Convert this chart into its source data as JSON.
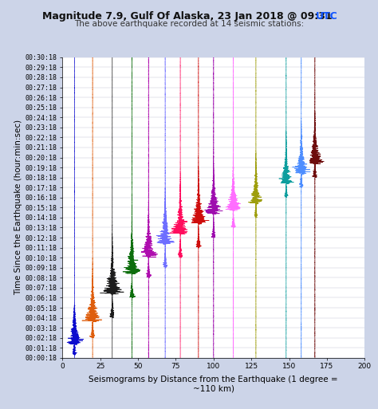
{
  "title_main": "Magnitude 7.9, Gulf Of Alaska, 23 Jan 2018 @ 09:31 ",
  "title_utc": "UTC",
  "subtitle": "The above earthquake recorded at 14 seismic stations:",
  "xlabel": "Seismograms by Distance from the Earthquake (1 degree =\n~110 km)",
  "ylabel": "Time Since the Earthquake (hour:min:sec)",
  "xlim": [
    0,
    200
  ],
  "ylim": [
    0,
    1800
  ],
  "xticks": [
    0,
    25,
    50,
    75,
    100,
    125,
    150,
    175,
    200
  ],
  "background_color": "#ccd4e8",
  "plot_bg_color": "#ffffff",
  "grid_color": "#bbbbcc",
  "stations": [
    {
      "x": 8,
      "color": "#0000cc",
      "amp": 2.5,
      "onset": 18,
      "duration": 300,
      "scale": 6
    },
    {
      "x": 20,
      "color": "#dd5500",
      "amp": 2.0,
      "onset": 120,
      "duration": 480,
      "scale": 7
    },
    {
      "x": 33,
      "color": "#111111",
      "amp": 4.0,
      "onset": 240,
      "duration": 700,
      "scale": 8
    },
    {
      "x": 46,
      "color": "#006600",
      "amp": 2.0,
      "onset": 360,
      "duration": 700,
      "scale": 6
    },
    {
      "x": 57,
      "color": "#aa00aa",
      "amp": 1.5,
      "onset": 480,
      "duration": 600,
      "scale": 6
    },
    {
      "x": 68,
      "color": "#6666ff",
      "amp": 1.8,
      "onset": 540,
      "duration": 700,
      "scale": 6
    },
    {
      "x": 78,
      "color": "#ff0055",
      "amp": 2.5,
      "onset": 600,
      "duration": 700,
      "scale": 7
    },
    {
      "x": 90,
      "color": "#cc0000",
      "amp": 2.0,
      "onset": 660,
      "duration": 700,
      "scale": 7
    },
    {
      "x": 100,
      "color": "#9900aa",
      "amp": 1.5,
      "onset": 720,
      "duration": 700,
      "scale": 6
    },
    {
      "x": 113,
      "color": "#ff66ff",
      "amp": 1.2,
      "onset": 780,
      "duration": 500,
      "scale": 5
    },
    {
      "x": 128,
      "color": "#999900",
      "amp": 1.5,
      "onset": 840,
      "duration": 400,
      "scale": 5
    },
    {
      "x": 148,
      "color": "#009999",
      "amp": 1.5,
      "onset": 960,
      "duration": 400,
      "scale": 5
    },
    {
      "x": 158,
      "color": "#4488ff",
      "amp": 1.5,
      "onset": 1020,
      "duration": 400,
      "scale": 6
    },
    {
      "x": 167,
      "color": "#660000",
      "amp": 1.5,
      "onset": 1080,
      "duration": 400,
      "scale": 6
    }
  ],
  "title_color": "#111111",
  "utc_color": "#1155ff",
  "subtitle_color": "#333333",
  "title_fontsize": 9,
  "subtitle_fontsize": 7.5,
  "tick_fontsize": 6,
  "axis_label_fontsize": 7.5
}
